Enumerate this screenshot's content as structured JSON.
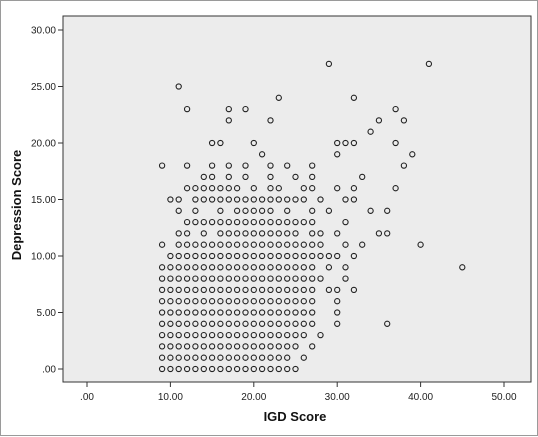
{
  "chart_data": {
    "type": "scatter",
    "title": "",
    "xlabel": "IGD Score",
    "ylabel": "Depression Score",
    "xlim": [
      0,
      50
    ],
    "ylim": [
      0,
      30
    ],
    "x_ticks": [
      ".00",
      "10.00",
      "20.00",
      "30.00",
      "40.00",
      "50.00"
    ],
    "y_ticks": [
      ".00",
      "5.00",
      "10.00",
      "15.00",
      "20.00",
      "25.00",
      "30.00"
    ],
    "grid": false,
    "legend": "none",
    "plot_background": "#ececec",
    "marker_color": "#222222",
    "points": [
      [
        9,
        0
      ],
      [
        10,
        0
      ],
      [
        11,
        0
      ],
      [
        12,
        0
      ],
      [
        13,
        0
      ],
      [
        14,
        0
      ],
      [
        15,
        0
      ],
      [
        16,
        0
      ],
      [
        17,
        0
      ],
      [
        18,
        0
      ],
      [
        19,
        0
      ],
      [
        20,
        0
      ],
      [
        21,
        0
      ],
      [
        22,
        0
      ],
      [
        23,
        0
      ],
      [
        24,
        0
      ],
      [
        25,
        0
      ],
      [
        9,
        1
      ],
      [
        10,
        1
      ],
      [
        11,
        1
      ],
      [
        12,
        1
      ],
      [
        13,
        1
      ],
      [
        14,
        1
      ],
      [
        15,
        1
      ],
      [
        16,
        1
      ],
      [
        17,
        1
      ],
      [
        18,
        1
      ],
      [
        19,
        1
      ],
      [
        20,
        1
      ],
      [
        21,
        1
      ],
      [
        22,
        1
      ],
      [
        23,
        1
      ],
      [
        24,
        1
      ],
      [
        26,
        1
      ],
      [
        9,
        2
      ],
      [
        10,
        2
      ],
      [
        11,
        2
      ],
      [
        12,
        2
      ],
      [
        13,
        2
      ],
      [
        14,
        2
      ],
      [
        15,
        2
      ],
      [
        16,
        2
      ],
      [
        17,
        2
      ],
      [
        18,
        2
      ],
      [
        19,
        2
      ],
      [
        20,
        2
      ],
      [
        21,
        2
      ],
      [
        22,
        2
      ],
      [
        23,
        2
      ],
      [
        24,
        2
      ],
      [
        25,
        2
      ],
      [
        27,
        2
      ],
      [
        9,
        3
      ],
      [
        10,
        3
      ],
      [
        11,
        3
      ],
      [
        12,
        3
      ],
      [
        13,
        3
      ],
      [
        14,
        3
      ],
      [
        15,
        3
      ],
      [
        16,
        3
      ],
      [
        17,
        3
      ],
      [
        18,
        3
      ],
      [
        19,
        3
      ],
      [
        20,
        3
      ],
      [
        21,
        3
      ],
      [
        22,
        3
      ],
      [
        23,
        3
      ],
      [
        24,
        3
      ],
      [
        25,
        3
      ],
      [
        26,
        3
      ],
      [
        28,
        3
      ],
      [
        9,
        4
      ],
      [
        10,
        4
      ],
      [
        11,
        4
      ],
      [
        12,
        4
      ],
      [
        13,
        4
      ],
      [
        14,
        4
      ],
      [
        15,
        4
      ],
      [
        16,
        4
      ],
      [
        17,
        4
      ],
      [
        18,
        4
      ],
      [
        19,
        4
      ],
      [
        20,
        4
      ],
      [
        21,
        4
      ],
      [
        22,
        4
      ],
      [
        23,
        4
      ],
      [
        24,
        4
      ],
      [
        25,
        4
      ],
      [
        26,
        4
      ],
      [
        27,
        4
      ],
      [
        30,
        4
      ],
      [
        36,
        4
      ],
      [
        9,
        5
      ],
      [
        10,
        5
      ],
      [
        11,
        5
      ],
      [
        12,
        5
      ],
      [
        13,
        5
      ],
      [
        14,
        5
      ],
      [
        15,
        5
      ],
      [
        16,
        5
      ],
      [
        17,
        5
      ],
      [
        18,
        5
      ],
      [
        19,
        5
      ],
      [
        20,
        5
      ],
      [
        21,
        5
      ],
      [
        22,
        5
      ],
      [
        23,
        5
      ],
      [
        24,
        5
      ],
      [
        25,
        5
      ],
      [
        26,
        5
      ],
      [
        27,
        5
      ],
      [
        30,
        5
      ],
      [
        9,
        6
      ],
      [
        10,
        6
      ],
      [
        11,
        6
      ],
      [
        12,
        6
      ],
      [
        13,
        6
      ],
      [
        14,
        6
      ],
      [
        15,
        6
      ],
      [
        16,
        6
      ],
      [
        17,
        6
      ],
      [
        18,
        6
      ],
      [
        19,
        6
      ],
      [
        20,
        6
      ],
      [
        21,
        6
      ],
      [
        22,
        6
      ],
      [
        23,
        6
      ],
      [
        24,
        6
      ],
      [
        25,
        6
      ],
      [
        26,
        6
      ],
      [
        27,
        6
      ],
      [
        30,
        6
      ],
      [
        9,
        7
      ],
      [
        10,
        7
      ],
      [
        11,
        7
      ],
      [
        12,
        7
      ],
      [
        13,
        7
      ],
      [
        14,
        7
      ],
      [
        15,
        7
      ],
      [
        16,
        7
      ],
      [
        17,
        7
      ],
      [
        18,
        7
      ],
      [
        19,
        7
      ],
      [
        20,
        7
      ],
      [
        21,
        7
      ],
      [
        22,
        7
      ],
      [
        23,
        7
      ],
      [
        24,
        7
      ],
      [
        25,
        7
      ],
      [
        26,
        7
      ],
      [
        27,
        7
      ],
      [
        29,
        7
      ],
      [
        30,
        7
      ],
      [
        32,
        7
      ],
      [
        9,
        8
      ],
      [
        10,
        8
      ],
      [
        11,
        8
      ],
      [
        12,
        8
      ],
      [
        13,
        8
      ],
      [
        14,
        8
      ],
      [
        15,
        8
      ],
      [
        16,
        8
      ],
      [
        17,
        8
      ],
      [
        18,
        8
      ],
      [
        19,
        8
      ],
      [
        20,
        8
      ],
      [
        21,
        8
      ],
      [
        22,
        8
      ],
      [
        23,
        8
      ],
      [
        24,
        8
      ],
      [
        25,
        8
      ],
      [
        26,
        8
      ],
      [
        27,
        8
      ],
      [
        28,
        8
      ],
      [
        31,
        8
      ],
      [
        9,
        9
      ],
      [
        10,
        9
      ],
      [
        11,
        9
      ],
      [
        12,
        9
      ],
      [
        13,
        9
      ],
      [
        14,
        9
      ],
      [
        15,
        9
      ],
      [
        16,
        9
      ],
      [
        17,
        9
      ],
      [
        18,
        9
      ],
      [
        19,
        9
      ],
      [
        20,
        9
      ],
      [
        21,
        9
      ],
      [
        22,
        9
      ],
      [
        23,
        9
      ],
      [
        24,
        9
      ],
      [
        25,
        9
      ],
      [
        26,
        9
      ],
      [
        27,
        9
      ],
      [
        29,
        9
      ],
      [
        31,
        9
      ],
      [
        45,
        9
      ],
      [
        10,
        10
      ],
      [
        11,
        10
      ],
      [
        12,
        10
      ],
      [
        13,
        10
      ],
      [
        14,
        10
      ],
      [
        15,
        10
      ],
      [
        16,
        10
      ],
      [
        17,
        10
      ],
      [
        18,
        10
      ],
      [
        19,
        10
      ],
      [
        20,
        10
      ],
      [
        21,
        10
      ],
      [
        22,
        10
      ],
      [
        23,
        10
      ],
      [
        24,
        10
      ],
      [
        25,
        10
      ],
      [
        26,
        10
      ],
      [
        27,
        10
      ],
      [
        28,
        10
      ],
      [
        29,
        10
      ],
      [
        30,
        10
      ],
      [
        32,
        10
      ],
      [
        9,
        11
      ],
      [
        11,
        11
      ],
      [
        12,
        11
      ],
      [
        13,
        11
      ],
      [
        14,
        11
      ],
      [
        15,
        11
      ],
      [
        16,
        11
      ],
      [
        17,
        11
      ],
      [
        18,
        11
      ],
      [
        19,
        11
      ],
      [
        20,
        11
      ],
      [
        21,
        11
      ],
      [
        22,
        11
      ],
      [
        23,
        11
      ],
      [
        24,
        11
      ],
      [
        25,
        11
      ],
      [
        26,
        11
      ],
      [
        27,
        11
      ],
      [
        28,
        11
      ],
      [
        31,
        11
      ],
      [
        33,
        11
      ],
      [
        40,
        11
      ],
      [
        11,
        12
      ],
      [
        12,
        12
      ],
      [
        14,
        12
      ],
      [
        16,
        12
      ],
      [
        17,
        12
      ],
      [
        18,
        12
      ],
      [
        19,
        12
      ],
      [
        20,
        12
      ],
      [
        21,
        12
      ],
      [
        22,
        12
      ],
      [
        23,
        12
      ],
      [
        24,
        12
      ],
      [
        25,
        12
      ],
      [
        27,
        12
      ],
      [
        28,
        12
      ],
      [
        30,
        12
      ],
      [
        35,
        12
      ],
      [
        36,
        12
      ],
      [
        12,
        13
      ],
      [
        13,
        13
      ],
      [
        14,
        13
      ],
      [
        15,
        13
      ],
      [
        16,
        13
      ],
      [
        17,
        13
      ],
      [
        18,
        13
      ],
      [
        19,
        13
      ],
      [
        20,
        13
      ],
      [
        21,
        13
      ],
      [
        22,
        13
      ],
      [
        23,
        13
      ],
      [
        24,
        13
      ],
      [
        25,
        13
      ],
      [
        26,
        13
      ],
      [
        27,
        13
      ],
      [
        31,
        13
      ],
      [
        11,
        14
      ],
      [
        13,
        14
      ],
      [
        16,
        14
      ],
      [
        18,
        14
      ],
      [
        19,
        14
      ],
      [
        20,
        14
      ],
      [
        21,
        14
      ],
      [
        22,
        14
      ],
      [
        24,
        14
      ],
      [
        27,
        14
      ],
      [
        29,
        14
      ],
      [
        34,
        14
      ],
      [
        36,
        14
      ],
      [
        10,
        15
      ],
      [
        11,
        15
      ],
      [
        13,
        15
      ],
      [
        14,
        15
      ],
      [
        15,
        15
      ],
      [
        16,
        15
      ],
      [
        17,
        15
      ],
      [
        18,
        15
      ],
      [
        19,
        15
      ],
      [
        20,
        15
      ],
      [
        21,
        15
      ],
      [
        22,
        15
      ],
      [
        23,
        15
      ],
      [
        24,
        15
      ],
      [
        25,
        15
      ],
      [
        26,
        15
      ],
      [
        28,
        15
      ],
      [
        31,
        15
      ],
      [
        32,
        15
      ],
      [
        12,
        16
      ],
      [
        13,
        16
      ],
      [
        14,
        16
      ],
      [
        15,
        16
      ],
      [
        16,
        16
      ],
      [
        17,
        16
      ],
      [
        18,
        16
      ],
      [
        20,
        16
      ],
      [
        22,
        16
      ],
      [
        23,
        16
      ],
      [
        26,
        16
      ],
      [
        27,
        16
      ],
      [
        30,
        16
      ],
      [
        32,
        16
      ],
      [
        37,
        16
      ],
      [
        14,
        17
      ],
      [
        15,
        17
      ],
      [
        17,
        17
      ],
      [
        19,
        17
      ],
      [
        22,
        17
      ],
      [
        25,
        17
      ],
      [
        27,
        17
      ],
      [
        33,
        17
      ],
      [
        9,
        18
      ],
      [
        12,
        18
      ],
      [
        15,
        18
      ],
      [
        17,
        18
      ],
      [
        19,
        18
      ],
      [
        22,
        18
      ],
      [
        24,
        18
      ],
      [
        27,
        18
      ],
      [
        38,
        18
      ],
      [
        21,
        19
      ],
      [
        30,
        19
      ],
      [
        39,
        19
      ],
      [
        15,
        20
      ],
      [
        16,
        20
      ],
      [
        20,
        20
      ],
      [
        30,
        20
      ],
      [
        31,
        20
      ],
      [
        32,
        20
      ],
      [
        37,
        20
      ],
      [
        34,
        21
      ],
      [
        17,
        22
      ],
      [
        22,
        22
      ],
      [
        35,
        22
      ],
      [
        38,
        22
      ],
      [
        12,
        23
      ],
      [
        17,
        23
      ],
      [
        19,
        23
      ],
      [
        37,
        23
      ],
      [
        23,
        24
      ],
      [
        32,
        24
      ],
      [
        11,
        25
      ],
      [
        29,
        27
      ],
      [
        41,
        27
      ]
    ]
  }
}
